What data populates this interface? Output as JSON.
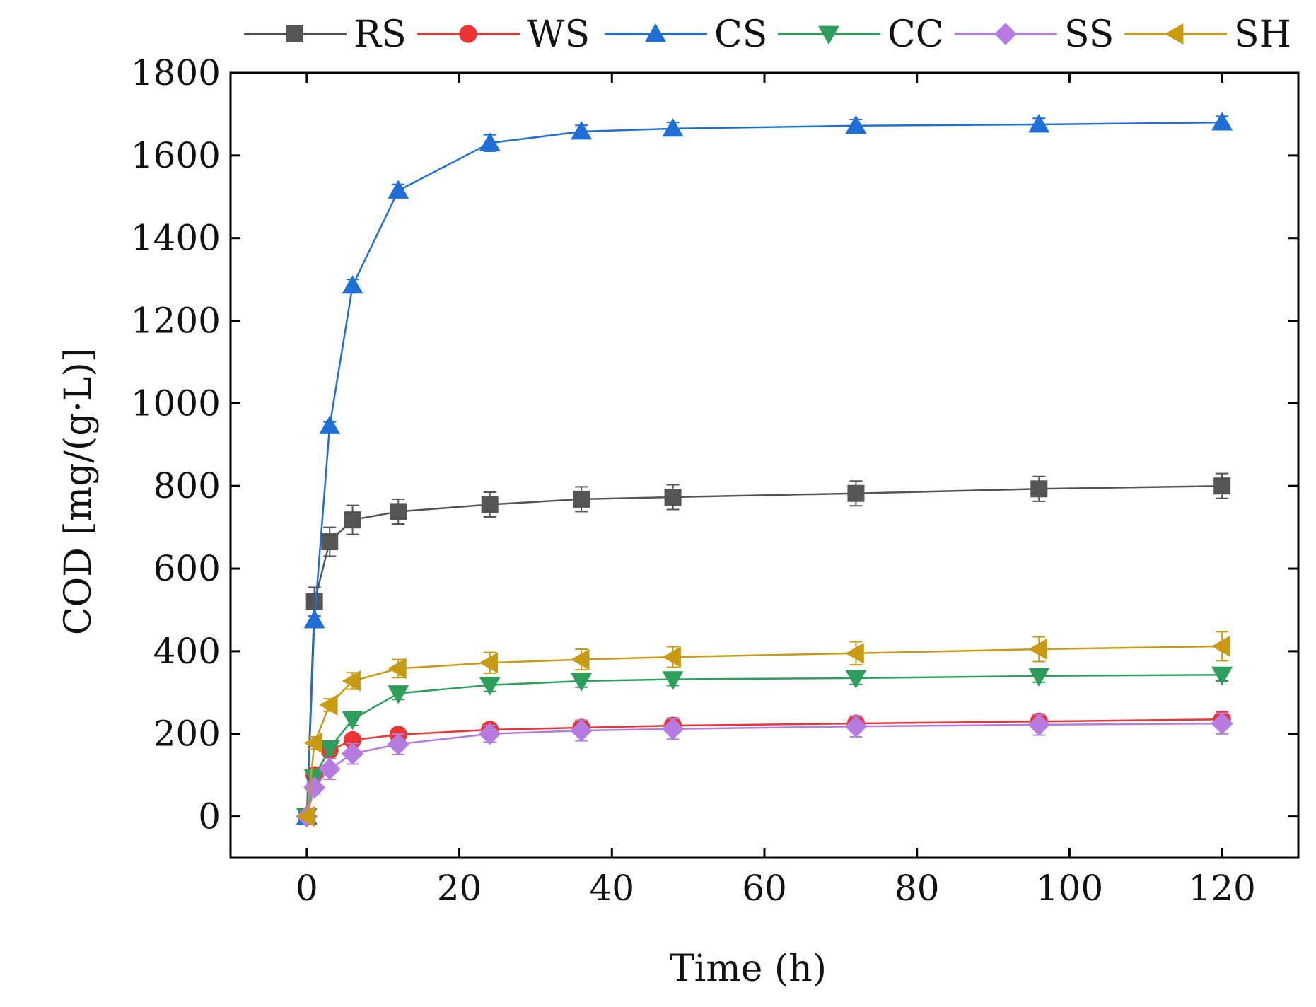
{
  "chart_data": {
    "type": "line",
    "title": "",
    "xlabel": "Time (h)",
    "ylabel": "COD [mg/(g·L)]",
    "xlim": [
      -10,
      130
    ],
    "ylim": [
      -100,
      1800
    ],
    "xticks": [
      0,
      20,
      40,
      60,
      80,
      100,
      120
    ],
    "yticks": [
      0,
      200,
      400,
      600,
      800,
      1000,
      1200,
      1400,
      1600,
      1800
    ],
    "x": [
      0,
      1,
      3,
      6,
      12,
      24,
      36,
      48,
      72,
      96,
      120
    ],
    "legend_position": "top",
    "grid": false,
    "series": [
      {
        "name": "RS",
        "color": "#555555",
        "marker": "square",
        "values": [
          0,
          520,
          665,
          718,
          738,
          755,
          768,
          773,
          782,
          793,
          800
        ],
        "errors": [
          0,
          35,
          35,
          35,
          30,
          30,
          30,
          30,
          30,
          30,
          30
        ]
      },
      {
        "name": "WS",
        "color": "#ee3333",
        "marker": "circle",
        "values": [
          0,
          100,
          160,
          185,
          198,
          210,
          215,
          220,
          225,
          230,
          235
        ],
        "errors": [
          0,
          15,
          15,
          15,
          15,
          15,
          15,
          18,
          18,
          18,
          18
        ]
      },
      {
        "name": "CS",
        "color": "#1f6fd6",
        "marker": "triangle-up",
        "values": [
          0,
          475,
          945,
          1285,
          1515,
          1630,
          1658,
          1665,
          1672,
          1675,
          1680
        ],
        "errors": [
          0,
          10,
          10,
          15,
          15,
          20,
          15,
          15,
          15,
          15,
          15
        ]
      },
      {
        "name": "CC",
        "color": "#2e9e5b",
        "marker": "triangle-down",
        "values": [
          0,
          95,
          165,
          235,
          298,
          318,
          328,
          332,
          335,
          340,
          343
        ],
        "errors": [
          0,
          15,
          15,
          15,
          15,
          15,
          15,
          15,
          15,
          15,
          15
        ]
      },
      {
        "name": "SS",
        "color": "#b57be0",
        "marker": "diamond",
        "values": [
          0,
          70,
          115,
          152,
          175,
          200,
          208,
          212,
          218,
          222,
          225
        ],
        "errors": [
          0,
          15,
          25,
          25,
          25,
          20,
          25,
          25,
          25,
          25,
          25
        ]
      },
      {
        "name": "SH",
        "color": "#c99a13",
        "marker": "triangle-left",
        "values": [
          0,
          178,
          270,
          328,
          358,
          372,
          380,
          386,
          395,
          405,
          412
        ],
        "errors": [
          0,
          15,
          15,
          20,
          22,
          25,
          25,
          25,
          28,
          30,
          35
        ]
      }
    ]
  }
}
